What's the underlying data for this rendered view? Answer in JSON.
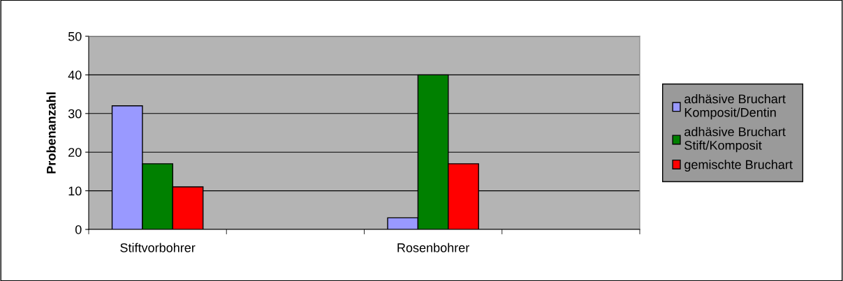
{
  "chart_data": {
    "type": "bar",
    "ylabel": "Probenanzahl",
    "categories": [
      "Stiftvorbohrer",
      null,
      "Rosenbohrer",
      null
    ],
    "series": [
      {
        "name": "adhäsive Bruchart\nKomposit/Dentin",
        "color": "#9999ff",
        "values": [
          32,
          null,
          3,
          null
        ]
      },
      {
        "name": "adhäsive Bruchart\nStift/Komposit",
        "color": "#008000",
        "values": [
          17,
          null,
          40,
          null
        ]
      },
      {
        "name": "gemischte Bruchart",
        "color": "#ff0000",
        "values": [
          11,
          null,
          17,
          null
        ]
      }
    ],
    "ylim": [
      0,
      50
    ],
    "yticks": [
      0,
      10,
      20,
      30,
      40,
      50
    ],
    "grid": "y",
    "legend": "right"
  }
}
